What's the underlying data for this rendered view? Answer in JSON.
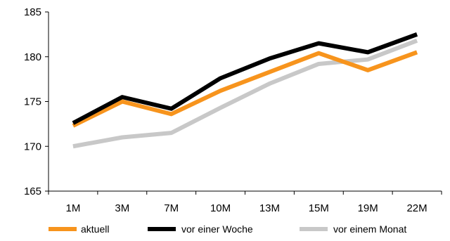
{
  "chart_data": {
    "type": "line",
    "title": "",
    "xlabel": "",
    "ylabel": "",
    "categories": [
      "1M",
      "3M",
      "7M",
      "10M",
      "13M",
      "15M",
      "19M",
      "22M"
    ],
    "ylim": [
      165,
      185
    ],
    "yticks": [
      165,
      170,
      175,
      180,
      185
    ],
    "grid": false,
    "legend_position": "bottom",
    "series": [
      {
        "name": "aktuell",
        "color": "#f7941d",
        "values": [
          172.3,
          175.0,
          173.6,
          176.2,
          178.3,
          180.4,
          178.5,
          180.5
        ]
      },
      {
        "name": "vor einer Woche",
        "color": "#000000",
        "values": [
          172.6,
          175.5,
          174.2,
          177.6,
          179.8,
          181.5,
          180.5,
          182.5
        ]
      },
      {
        "name": "vor einem Monat",
        "color": "#c8c8c8",
        "values": [
          170.0,
          171.0,
          171.5,
          174.3,
          177.0,
          179.2,
          179.7,
          181.8
        ]
      }
    ]
  }
}
